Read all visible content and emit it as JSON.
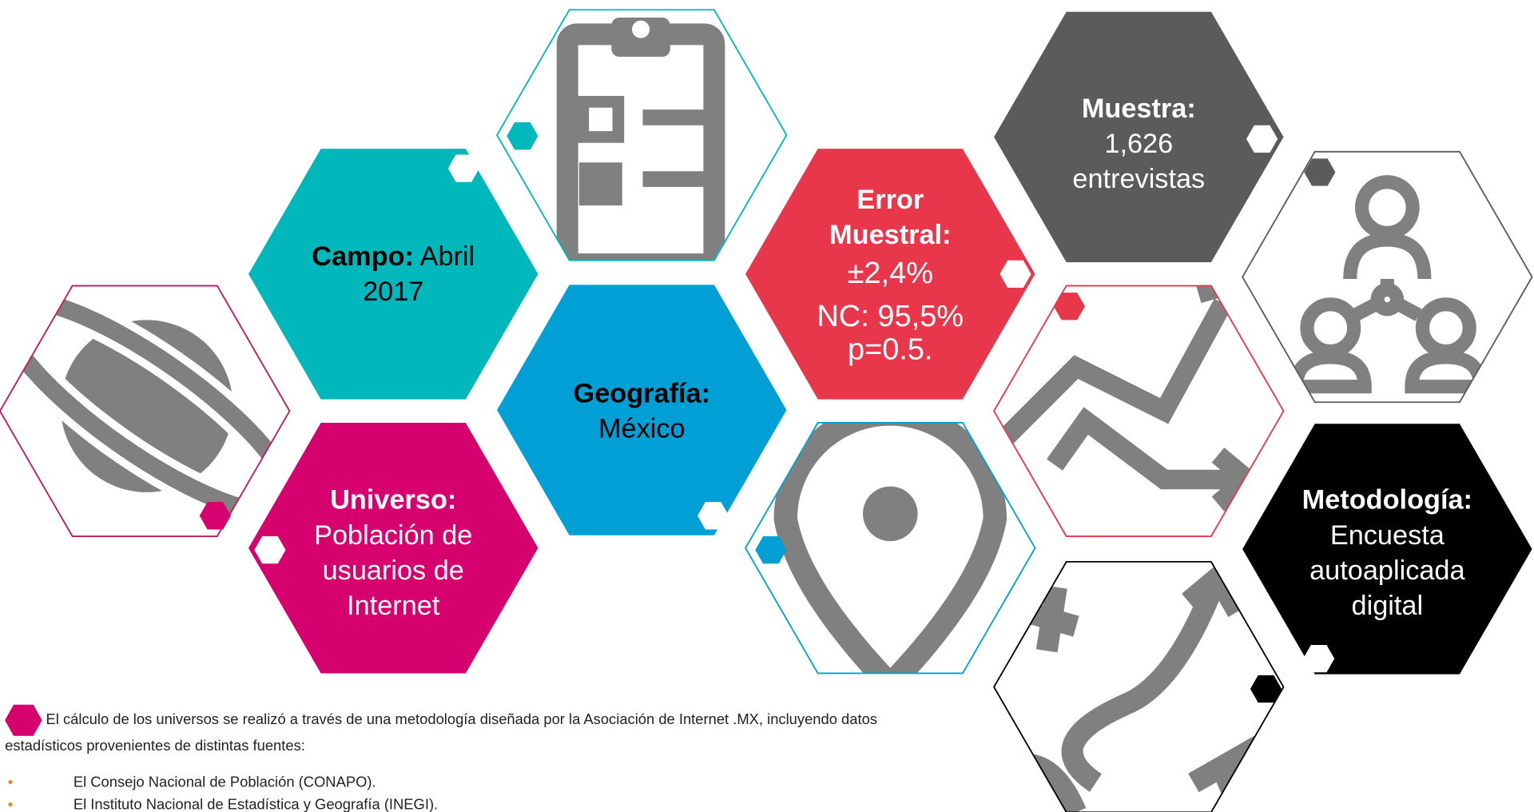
{
  "hexagons": [
    {
      "label": "Campo:",
      "text": "Abril 2017"
    },
    {
      "label": "Universo:",
      "text": "Población de usuarios de Internet"
    },
    {
      "label": "Geografía:",
      "text": "México"
    },
    {
      "label": "Error Muestral:",
      "text": "±2,4%",
      "extra": "NC: 95,5% p=0.5."
    },
    {
      "label": "Muestra:",
      "text": "1,626 entrevistas"
    },
    {
      "label": "Metodología:",
      "text": "Encuesta autoaplicada digital"
    }
  ],
  "note": "El cálculo de los universos se realizó a través de una metodología diseñada por la Asociación de Internet .MX, incluyendo datos estadísticos provenientes de distintas fuentes:",
  "bullets": [
    "El Consejo Nacional de Población (CONAPO).",
    "El Instituto Nacional de Estadística y Geografía (INEGI)."
  ]
}
